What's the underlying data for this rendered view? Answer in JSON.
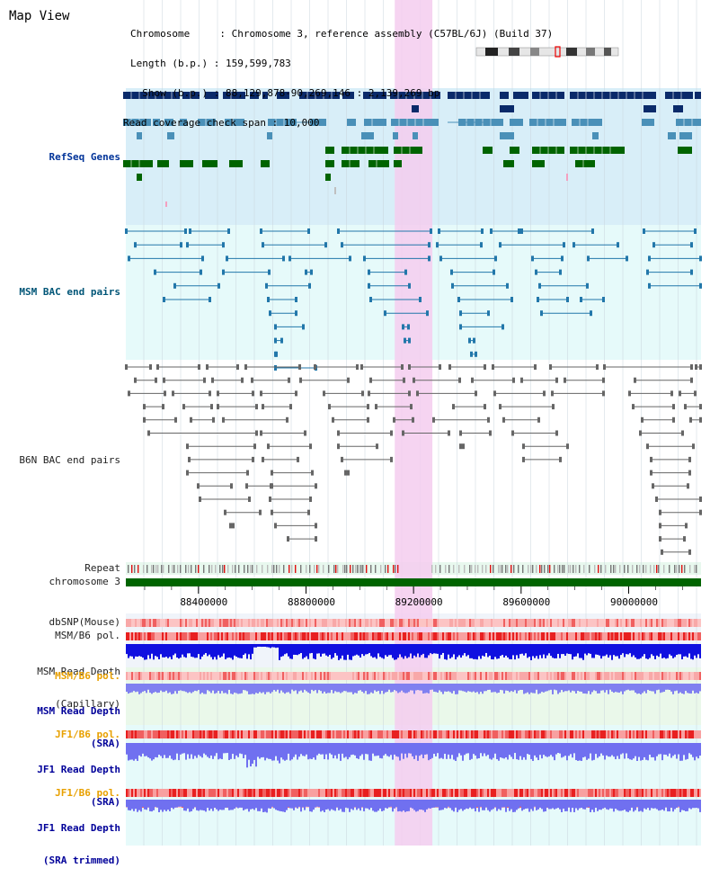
{
  "page": {
    "title": "Map View"
  },
  "info": {
    "chromosome_line": "Chromosome     : Chromosome 3, reference assembly (C57BL/6J) (Build 37)",
    "length_line": "Length (b.p.) : 159,599,783",
    "show_line": "  Show (b.p.) : 88,129,878-90,269,146 : 2,139,269 bp",
    "coverage_line": "Read coverage check span : 10,000"
  },
  "tracks": {
    "refseq": "RefSeq Genes",
    "msm_bac": "MSM BAC end pairs",
    "b6n_bac": "B6N BAC end pairs",
    "repeat": "Repeat",
    "chromosome": "chromosome 3",
    "dbsnp": "dbSNP(Mouse)",
    "msm_pol_1": "MSM/B6 pol.",
    "msm_depth_cap_1": "MSM Read Depth",
    "msm_depth_cap_2": "(Capillary)",
    "msm_pol_2": "MSM/B6 pol.",
    "msm_depth_sra_1": "MSM Read Depth",
    "msm_depth_sra_2": "(SRA)",
    "jf1_pol_1": "JF1/B6 pol.",
    "jf1_depth_1": "JF1 Read Depth",
    "jf1_depth_2": "(SRA)",
    "jf1_pol_2": "JF1/B6 pol.",
    "jf1_trim_1": "JF1 Read Depth",
    "jf1_trim_2": "(SRA trimmed)"
  },
  "axis": {
    "ticks": [
      {
        "label": "88400000",
        "value": 88400000
      },
      {
        "label": "88800000",
        "value": 88800000
      },
      {
        "label": "89200000",
        "value": 89200000
      },
      {
        "label": "89600000",
        "value": 89600000
      },
      {
        "label": "90000000",
        "value": 90000000
      }
    ],
    "view_start": 88129878,
    "view_end": 90269146
  },
  "highlight": {
    "start": 89130000,
    "end": 89270000
  },
  "colors": {
    "gene_navy": "#0a2a6a",
    "gene_steel": "#4a90b8",
    "gene_green": "#006400",
    "msm_bac": "#2277aa",
    "b6n_bac": "#666666",
    "highlight": "#f5ccef",
    "chromosome_bar": "#006400"
  }
}
